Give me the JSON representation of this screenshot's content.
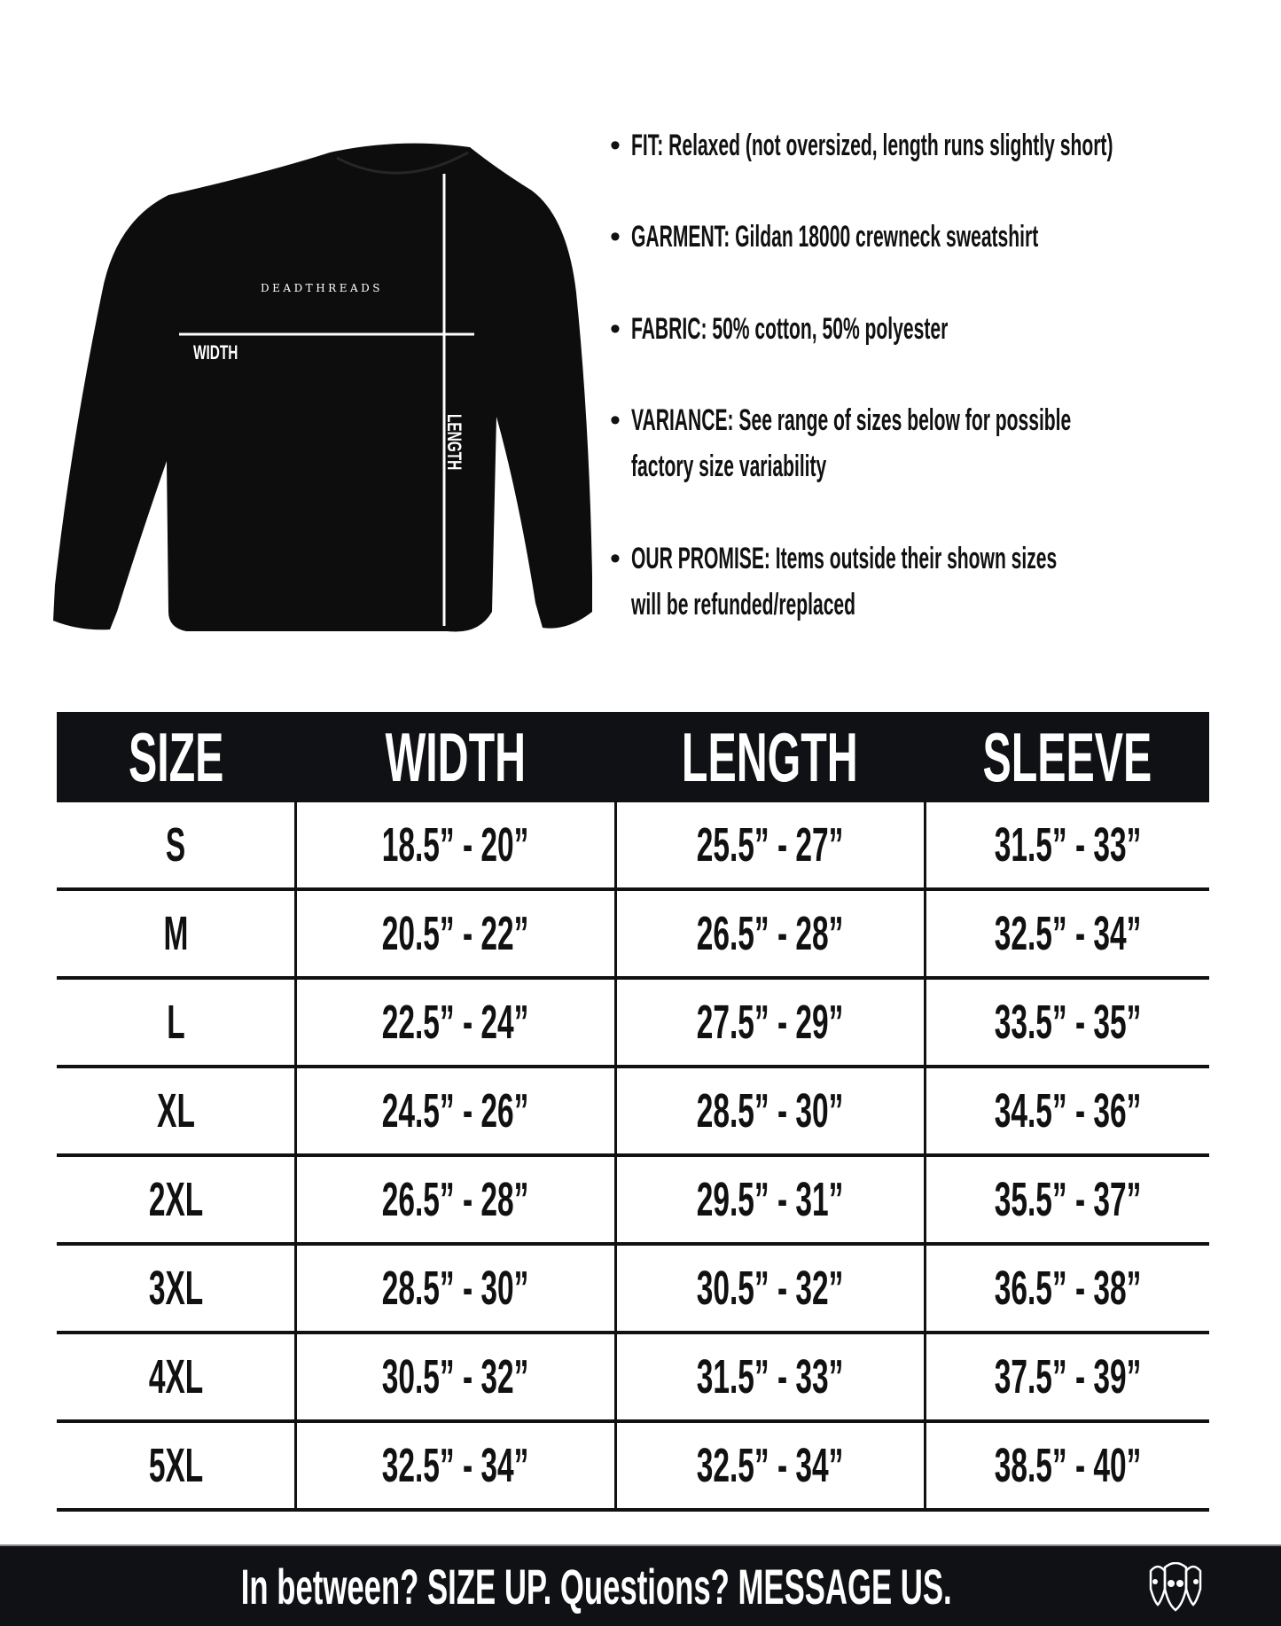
{
  "garment_image": {
    "brand_print": "DEADTHREADS",
    "width_label": "WIDTH",
    "length_label": "LENGTH",
    "garment_color": "#0d0d0d"
  },
  "details": [
    {
      "bullet": "•",
      "lines": [
        "FIT: Relaxed (not oversized, length runs slightly short)"
      ]
    },
    {
      "bullet": "•",
      "lines": [
        "GARMENT: Gildan 18000 crewneck sweatshirt"
      ]
    },
    {
      "bullet": "•",
      "lines": [
        "FABRIC: 50% cotton, 50% polyester"
      ]
    },
    {
      "bullet": "•",
      "lines": [
        "VARIANCE: See range of sizes below for possible",
        "factory size variability"
      ]
    },
    {
      "bullet": "•",
      "lines": [
        "OUR PROMISE: Items outside their shown sizes",
        "will be refunded/replaced"
      ]
    }
  ],
  "size_table": {
    "headers": [
      "SIZE",
      "WIDTH",
      "LENGTH",
      "SLEEVE"
    ],
    "rows": [
      [
        "S",
        "18.5” - 20”",
        "25.5” - 27”",
        "31.5” - 33”"
      ],
      [
        "M",
        "20.5” - 22”",
        "26.5” - 28”",
        "32.5” - 34”"
      ],
      [
        "L",
        "22.5” - 24”",
        "27.5” - 29”",
        "33.5” - 35”"
      ],
      [
        "XL",
        "24.5” - 26”",
        "28.5” - 30”",
        "34.5” - 36”"
      ],
      [
        "2XL",
        "26.5” - 28”",
        "29.5” - 31”",
        "35.5” - 37”"
      ],
      [
        "3XL",
        "28.5” - 30”",
        "30.5” - 32”",
        "36.5” - 38”"
      ],
      [
        "4XL",
        "30.5” - 32”",
        "31.5” - 33”",
        "37.5” - 39”"
      ],
      [
        "5XL",
        "32.5” - 34”",
        "32.5” - 34”",
        "38.5” - 40”"
      ]
    ],
    "header_bg": "#101114"
  },
  "footer": {
    "text": "In between? SIZE UP. Questions? MESSAGE US.",
    "logo_icon": "three-skulls-icon",
    "bg": "#101114"
  }
}
